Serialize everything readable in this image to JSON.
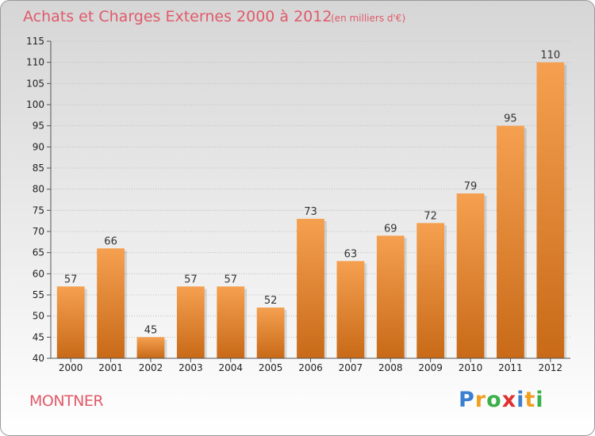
{
  "chart_data": {
    "type": "bar",
    "title": "Achats et Charges Externes 2000 à 2012",
    "subtitle": "(en milliers d'€)",
    "categories": [
      "2000",
      "2001",
      "2002",
      "2003",
      "2004",
      "2005",
      "2006",
      "2007",
      "2008",
      "2009",
      "2010",
      "2011",
      "2012"
    ],
    "values": [
      57,
      66,
      45,
      57,
      57,
      52,
      73,
      63,
      69,
      72,
      79,
      95,
      110
    ],
    "ylim": [
      40,
      115
    ],
    "yticks": [
      40,
      45,
      50,
      55,
      60,
      65,
      70,
      75,
      80,
      85,
      90,
      95,
      100,
      105,
      110,
      115
    ],
    "grid": true,
    "bar_color": "#f5a050",
    "bar_color_dark": "#c86a18"
  },
  "location": "MONTNER",
  "logo": {
    "text": "Proxiti",
    "letters": [
      {
        "ch": "P",
        "color": "#3a7fd0"
      },
      {
        "ch": "r",
        "color": "#f0a020"
      },
      {
        "ch": "o",
        "color": "#3cb04a"
      },
      {
        "ch": "x",
        "color": "#e03030"
      },
      {
        "ch": "i",
        "color": "#3a7fd0"
      },
      {
        "ch": "t",
        "color": "#f0a020"
      },
      {
        "ch": "i",
        "color": "#3cb04a"
      }
    ]
  }
}
